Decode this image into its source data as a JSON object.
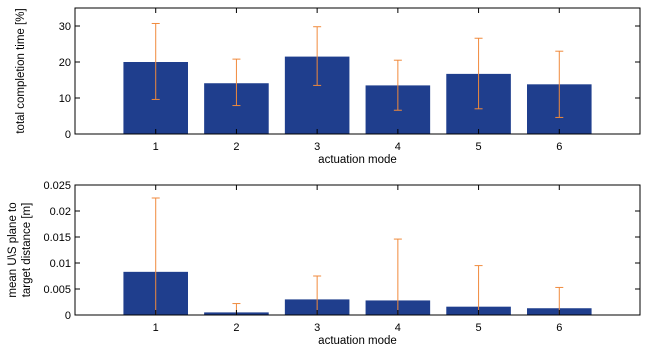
{
  "chart_data": [
    {
      "type": "bar",
      "categories": [
        "1",
        "2",
        "3",
        "4",
        "5",
        "6"
      ],
      "values": [
        20.0,
        14.1,
        21.5,
        13.5,
        16.7,
        13.8
      ],
      "error_low": [
        9.6,
        7.9,
        13.5,
        6.6,
        7.0,
        4.6
      ],
      "error_high": [
        30.7,
        20.8,
        29.8,
        20.5,
        26.6,
        23.0
      ],
      "xlabel": "actuation mode",
      "ylabel": "total completion time [%]",
      "ylim": [
        0,
        35
      ],
      "yticks": [
        "0",
        "10",
        "20",
        "30"
      ],
      "ytick_values": [
        0,
        10,
        20,
        30
      ],
      "bar_color": "#1F3E8D",
      "error_color": "#F08A3C",
      "grid": false
    },
    {
      "type": "bar",
      "categories": [
        "1",
        "2",
        "3",
        "4",
        "5",
        "6"
      ],
      "values": [
        0.0083,
        0.0005,
        0.003,
        0.0028,
        0.0016,
        0.0013
      ],
      "error_low": [
        0,
        0,
        0,
        0,
        0,
        0
      ],
      "error_high": [
        0.0225,
        0.0022,
        0.0075,
        0.0146,
        0.0095,
        0.0053
      ],
      "xlabel": "actuation mode",
      "ylabel": "mean U\\S plane to target distance [m]",
      "ylabel_lines": [
        "mean U\\S plane to",
        "target distance [m]"
      ],
      "ylim": [
        0,
        0.025
      ],
      "yticks": [
        "0",
        "0.005",
        "0.01",
        "0.015",
        "0.02",
        "0.025"
      ],
      "ytick_values": [
        0,
        0.005,
        0.01,
        0.015,
        0.02,
        0.025
      ],
      "bar_color": "#1F3E8D",
      "error_color": "#F08A3C",
      "grid": false
    }
  ]
}
